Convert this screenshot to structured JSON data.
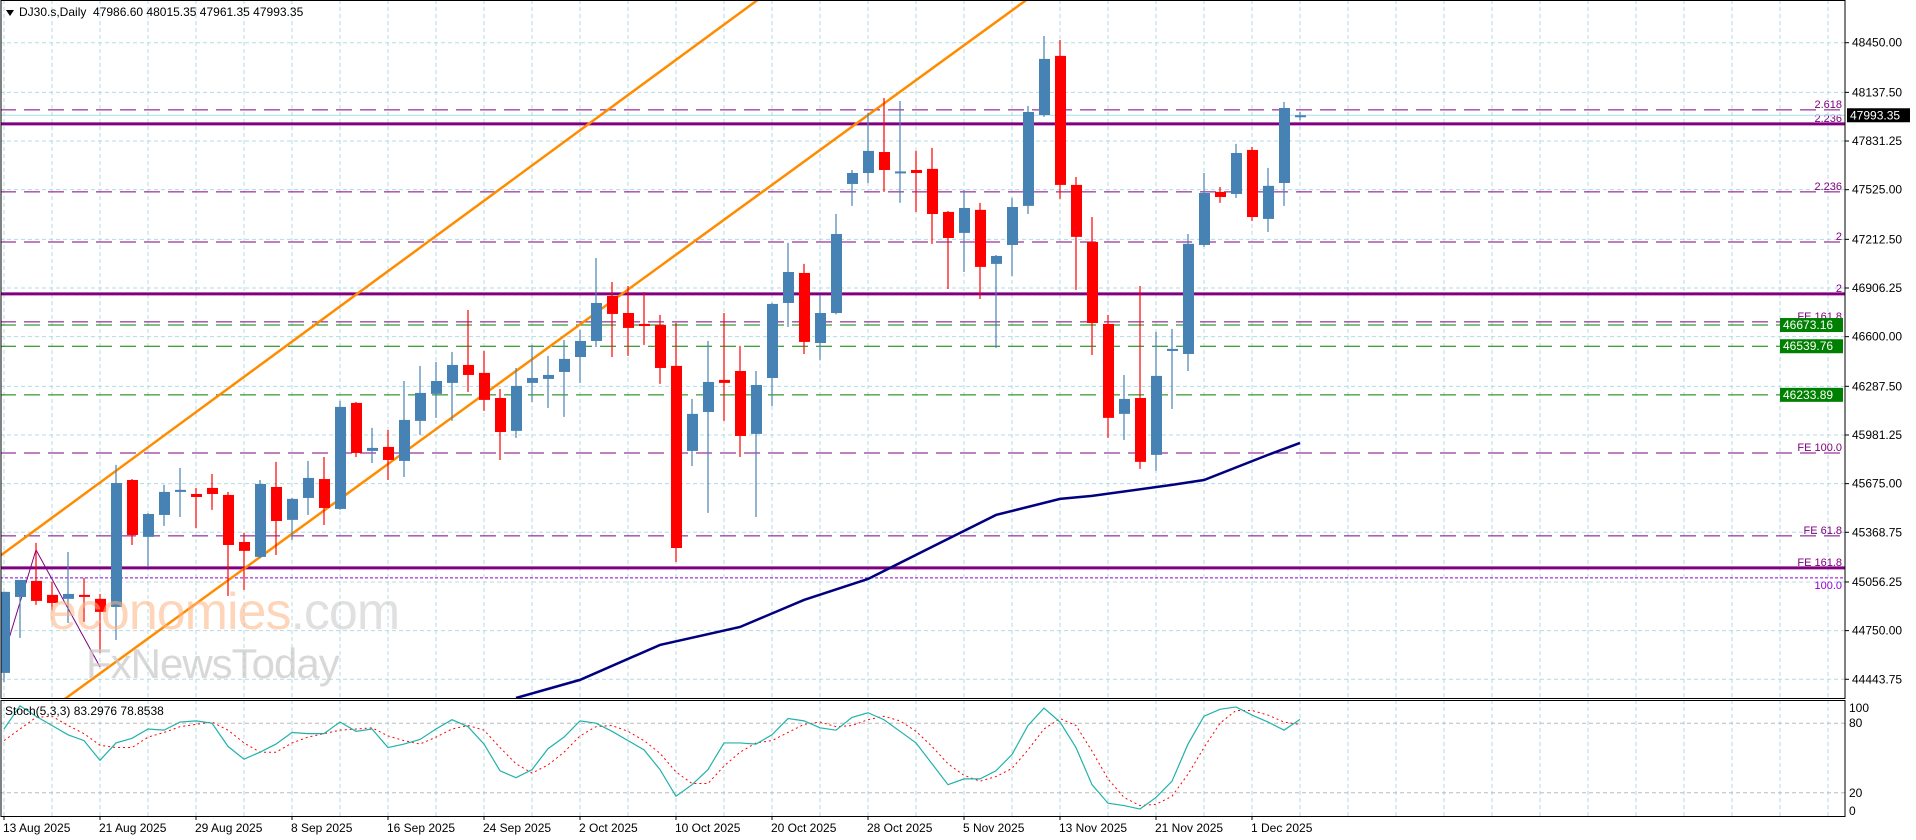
{
  "header": {
    "symbol": "DJ30.s,Daily",
    "ohlc_text": "47986.60 48015.35 47961.35 47993.35"
  },
  "stoch": {
    "label": "Stoch(5,3,3) 83.2976 78.8538",
    "levels": [
      "100",
      "80",
      "20",
      "0"
    ]
  },
  "watermark": {
    "part1": "economies",
    "part2": ".com",
    "line2": "FxNewsToday"
  },
  "colors": {
    "bull": "#4682B4",
    "bear": "#FF0000",
    "grid": "#B0DDE4",
    "channel": "#FF8C00",
    "ma": "#000080",
    "fib": "#800080",
    "support": "#008000",
    "stoch_main": "#20B2AA",
    "stoch_signal": "#FF0000"
  },
  "chart_data": {
    "type": "candlestick",
    "title": "DJ30.s,Daily",
    "price_ticks": [
      "48450.00",
      "48137.50",
      "47831.25",
      "47525.00",
      "47212.50",
      "46906.25",
      "46600.00",
      "46287.50",
      "45981.25",
      "45675.00",
      "45368.75",
      "45056.25",
      "44750.00",
      "44443.75"
    ],
    "ylim": [
      44327,
      48719
    ],
    "x_labels": [
      {
        "bar": 0,
        "text": "13 Aug 2025"
      },
      {
        "bar": 6,
        "text": "21 Aug 2025"
      },
      {
        "bar": 12,
        "text": "29 Aug 2025"
      },
      {
        "bar": 18,
        "text": "8 Sep 2025"
      },
      {
        "bar": 24,
        "text": "16 Sep 2025"
      },
      {
        "bar": 30,
        "text": "24 Sep 2025"
      },
      {
        "bar": 36,
        "text": "2 Oct 2025"
      },
      {
        "bar": 42,
        "text": "10 Oct 2025"
      },
      {
        "bar": 48,
        "text": "20 Oct 2025"
      },
      {
        "bar": 54,
        "text": "28 Oct 2025"
      },
      {
        "bar": 60,
        "text": "5 Nov 2025"
      },
      {
        "bar": 66,
        "text": "13 Nov 2025"
      },
      {
        "bar": 72,
        "text": "21 Nov 2025"
      },
      {
        "bar": 78,
        "text": "1 Dec 2025"
      }
    ],
    "ohlc": [
      [
        44484,
        44994,
        44427,
        44994
      ],
      [
        44962,
        45069,
        44704,
        45069
      ],
      [
        45063,
        45302,
        44912,
        44937
      ],
      [
        44975,
        45056,
        44880,
        44924
      ],
      [
        44950,
        45245,
        44798,
        44981
      ],
      [
        44975,
        45082,
        44805,
        44962
      ],
      [
        44950,
        44981,
        44610,
        44868
      ],
      [
        44899,
        45793,
        44691,
        45679
      ],
      [
        45698,
        45704,
        45289,
        45352
      ],
      [
        45340,
        45490,
        45151,
        45484
      ],
      [
        45478,
        45667,
        45409,
        45623
      ],
      [
        45623,
        45774,
        45465,
        45636
      ],
      [
        45610,
        45648,
        45396,
        45591
      ],
      [
        45648,
        45736,
        45510,
        45610
      ],
      [
        45604,
        45623,
        44968,
        45289
      ],
      [
        45308,
        45365,
        45006,
        45252
      ],
      [
        45214,
        45698,
        45207,
        45673
      ],
      [
        45654,
        45812,
        45226,
        45440
      ],
      [
        45447,
        45585,
        45321,
        45579
      ],
      [
        45585,
        45818,
        45478,
        45711
      ],
      [
        45704,
        45843,
        45415,
        45522
      ],
      [
        45516,
        46196,
        45510,
        46158
      ],
      [
        46183,
        46189,
        45843,
        45868
      ],
      [
        45881,
        46026,
        45805,
        45900
      ],
      [
        45906,
        46013,
        45698,
        45824
      ],
      [
        45818,
        46321,
        45717,
        46076
      ],
      [
        46070,
        46416,
        45982,
        46246
      ],
      [
        46240,
        46441,
        46089,
        46321
      ],
      [
        46309,
        46504,
        46070,
        46422
      ],
      [
        46422,
        46768,
        46252,
        46359
      ],
      [
        46372,
        46510,
        46133,
        46202
      ],
      [
        46214,
        46271,
        45824,
        46000
      ],
      [
        46007,
        46403,
        45963,
        46290
      ],
      [
        46309,
        46548,
        46189,
        46340
      ],
      [
        46334,
        46479,
        46151,
        46359
      ],
      [
        46378,
        46579,
        46095,
        46460
      ],
      [
        46472,
        46642,
        46309,
        46573
      ],
      [
        46573,
        47095,
        46535,
        46812
      ],
      [
        46856,
        46944,
        46472,
        46743
      ],
      [
        46749,
        46919,
        46479,
        46655
      ],
      [
        46680,
        46881,
        46548,
        46667
      ],
      [
        46674,
        46737,
        46303,
        46403
      ],
      [
        46416,
        46686,
        45182,
        45270
      ],
      [
        45881,
        46208,
        45786,
        46114
      ],
      [
        46126,
        46573,
        45491,
        46315
      ],
      [
        46328,
        46749,
        46070,
        46309
      ],
      [
        46384,
        46542,
        45843,
        45975
      ],
      [
        45988,
        46384,
        45465,
        46296
      ],
      [
        46340,
        46812,
        46164,
        46806
      ],
      [
        46812,
        47190,
        46661,
        47007
      ],
      [
        47001,
        47058,
        46491,
        46567
      ],
      [
        46560,
        46863,
        46454,
        46749
      ],
      [
        46749,
        47372,
        46740,
        47246
      ],
      [
        47561,
        47649,
        47423,
        47630
      ],
      [
        47630,
        48008,
        47567,
        47769
      ],
      [
        47762,
        48102,
        47511,
        47649
      ],
      [
        47637,
        48083,
        47442,
        47640
      ],
      [
        47649,
        47769,
        47385,
        47630
      ],
      [
        47656,
        47788,
        47184,
        47372
      ],
      [
        47385,
        47391,
        46900,
        47221
      ],
      [
        47253,
        47523,
        47007,
        47410
      ],
      [
        47398,
        47442,
        46837,
        47039
      ],
      [
        47058,
        47114,
        46529,
        47108
      ],
      [
        47177,
        47473,
        46982,
        47416
      ],
      [
        47423,
        48052,
        47372,
        48014
      ],
      [
        47995,
        48492,
        47983,
        48348
      ],
      [
        48367,
        48467,
        47467,
        47555
      ],
      [
        47555,
        47605,
        46894,
        47228
      ],
      [
        47196,
        47353,
        46485,
        46686
      ],
      [
        46680,
        46737,
        45963,
        46089
      ],
      [
        46114,
        46359,
        45950,
        46208
      ],
      [
        46214,
        46919,
        45768,
        45812
      ],
      [
        45856,
        46630,
        45755,
        46353
      ],
      [
        46510,
        46649,
        46145,
        46523
      ],
      [
        46491,
        47246,
        46384,
        47184
      ],
      [
        47177,
        47630,
        47165,
        47504
      ],
      [
        47511,
        47542,
        47442,
        47479
      ],
      [
        47498,
        47813,
        47473,
        47756
      ],
      [
        47775,
        47794,
        47328,
        47353
      ],
      [
        47341,
        47662,
        47259,
        47549
      ],
      [
        47567,
        48077,
        47423,
        48039
      ],
      [
        47986.6,
        48015.35,
        47961.35,
        47993.35
      ]
    ],
    "current_price": "47993.35",
    "levels": [
      {
        "price": 48027,
        "label": "2.618",
        "color": "#800080",
        "style": "dash",
        "w": 1
      },
      {
        "price": 47939,
        "label": "2.236",
        "color": "#800080",
        "style": "solid",
        "w": 3
      },
      {
        "price": 47511,
        "label": "2.236",
        "color": "#800080",
        "style": "dash",
        "w": 1
      },
      {
        "price": 47196,
        "label": "2",
        "color": "#800080",
        "style": "dash",
        "w": 1
      },
      {
        "price": 46869,
        "label": "2",
        "color": "#800080",
        "style": "solid",
        "w": 3
      },
      {
        "price": 46693,
        "label": "FE 161.8",
        "color": "#800080",
        "style": "dash",
        "w": 1
      },
      {
        "price": 46673.16,
        "label": "",
        "tag": "46673.16",
        "color": "#008000",
        "style": "dash",
        "w": 1
      },
      {
        "price": 46539.76,
        "label": "",
        "tag": "46539.76",
        "color": "#008000",
        "style": "dash",
        "w": 1
      },
      {
        "price": 46233.89,
        "label": "",
        "tag": "46233.89",
        "color": "#008000",
        "style": "dash",
        "w": 1
      },
      {
        "price": 45868,
        "label": "FE 100.0",
        "color": "#800080",
        "style": "dash",
        "w": 1
      },
      {
        "price": 45346,
        "label": "FE 61.8",
        "color": "#800080",
        "style": "dash",
        "w": 1
      },
      {
        "price": 45145,
        "label": "FE 161.8",
        "color": "#800080",
        "style": "solid",
        "w": 3
      },
      {
        "price": 45082,
        "label": "100.0",
        "color": "#9400D3",
        "style": "dot",
        "w": 1
      }
    ],
    "trendlines": [
      {
        "name": "channel-upper",
        "p1": [
          -0.25,
          45220
        ],
        "p2": [
          47.1,
          48719
        ]
      },
      {
        "name": "channel-lower",
        "p1": [
          3.9,
          44327
        ],
        "p2": [
          63.9,
          48719
        ]
      }
    ],
    "zigzag": [
      [
        0,
        44597
      ],
      [
        2,
        45258
      ],
      [
        6,
        44522
      ]
    ],
    "moving_average": [
      [
        32,
        44326
      ],
      [
        36,
        44440
      ],
      [
        41,
        44660
      ],
      [
        46,
        44773
      ],
      [
        50,
        44943
      ],
      [
        54,
        45075
      ],
      [
        58,
        45277
      ],
      [
        62,
        45478
      ],
      [
        66,
        45579
      ],
      [
        68,
        45598
      ],
      [
        73,
        45667
      ],
      [
        75,
        45698
      ],
      [
        79,
        45856
      ],
      [
        81,
        45931
      ]
    ],
    "stoch_main": [
      75,
      95,
      86,
      78,
      70,
      65,
      48,
      63,
      67,
      75,
      74,
      81,
      82,
      80,
      60,
      49,
      55,
      62,
      72,
      71,
      71,
      81,
      73,
      75,
      59,
      62,
      66,
      75,
      83,
      77,
      62,
      39,
      33,
      40,
      58,
      68,
      82,
      80,
      73,
      65,
      57,
      40,
      17,
      27,
      40,
      63,
      63,
      62,
      70,
      84,
      82,
      76,
      74,
      85,
      89,
      83,
      73,
      63,
      45,
      27,
      32,
      32,
      39,
      53,
      78,
      93,
      81,
      59,
      27,
      11,
      9,
      6,
      16,
      30,
      62,
      86,
      92,
      94,
      87,
      81,
      74,
      83.3
    ],
    "stoch_signal": [
      65,
      75,
      85,
      86,
      78,
      71,
      61,
      59,
      59,
      68,
      72,
      77,
      79,
      81,
      74,
      63,
      55,
      55,
      63,
      68,
      71,
      74,
      75,
      76,
      69,
      65,
      62,
      68,
      75,
      78,
      74,
      59,
      45,
      37,
      44,
      55,
      69,
      77,
      78,
      73,
      65,
      54,
      38,
      28,
      28,
      43,
      55,
      63,
      65,
      72,
      79,
      81,
      77,
      78,
      83,
      86,
      82,
      73,
      60,
      45,
      35,
      30,
      34,
      41,
      57,
      75,
      84,
      78,
      56,
      32,
      16,
      9,
      10,
      17,
      36,
      59,
      80,
      91,
      91,
      87,
      81,
      78.85
    ]
  }
}
